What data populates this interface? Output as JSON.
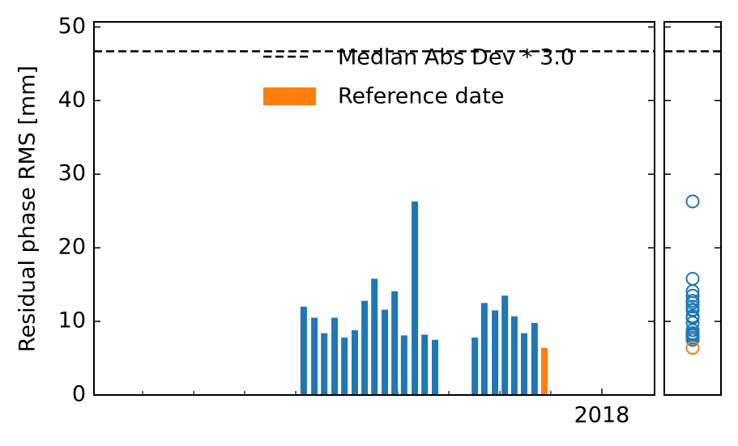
{
  "chart_data": {
    "type": "bar",
    "ylabel": "Residual phase RMS [mm]",
    "x": [
      2017.026,
      2017.061,
      2017.093,
      2017.127,
      2017.159,
      2017.193,
      2017.225,
      2017.257,
      2017.291,
      2017.323,
      2017.354,
      2017.389,
      2017.421,
      2017.455,
      2017.585,
      2017.616,
      2017.651,
      2017.683,
      2017.714,
      2017.746,
      2017.78,
      2017.812
    ],
    "series": [
      {
        "color": "#1f77b4",
        "values": [
          12.0,
          10.5,
          8.4,
          10.5,
          7.8,
          8.8,
          12.8,
          15.8,
          11.6,
          14.1,
          8.1,
          26.3,
          8.2,
          7.5,
          7.8,
          12.5,
          11.5,
          13.5,
          10.7,
          8.4,
          9.8,
          null
        ]
      },
      {
        "name": "Reference date",
        "color": "#ff7f0e",
        "values": [
          null,
          null,
          null,
          null,
          null,
          null,
          null,
          null,
          null,
          null,
          null,
          null,
          null,
          null,
          null,
          null,
          null,
          null,
          null,
          null,
          null,
          6.4
        ]
      }
    ],
    "threshold": {
      "name": "Median Abs Dev * 3.0",
      "value": 46.7,
      "color": "#000000"
    },
    "xlim": [
      2016.341,
      2018.172
    ],
    "xticks": [
      2018
    ],
    "xminor_ticks": [
      2016.5,
      2016.667,
      2016.833,
      2017,
      2017.167,
      2017.333,
      2017.5,
      2017.667,
      2017.833
    ],
    "ylim": [
      0,
      50.7
    ],
    "yticks": [
      0,
      10,
      20,
      30,
      40,
      50
    ],
    "legend": "upper center"
  }
}
